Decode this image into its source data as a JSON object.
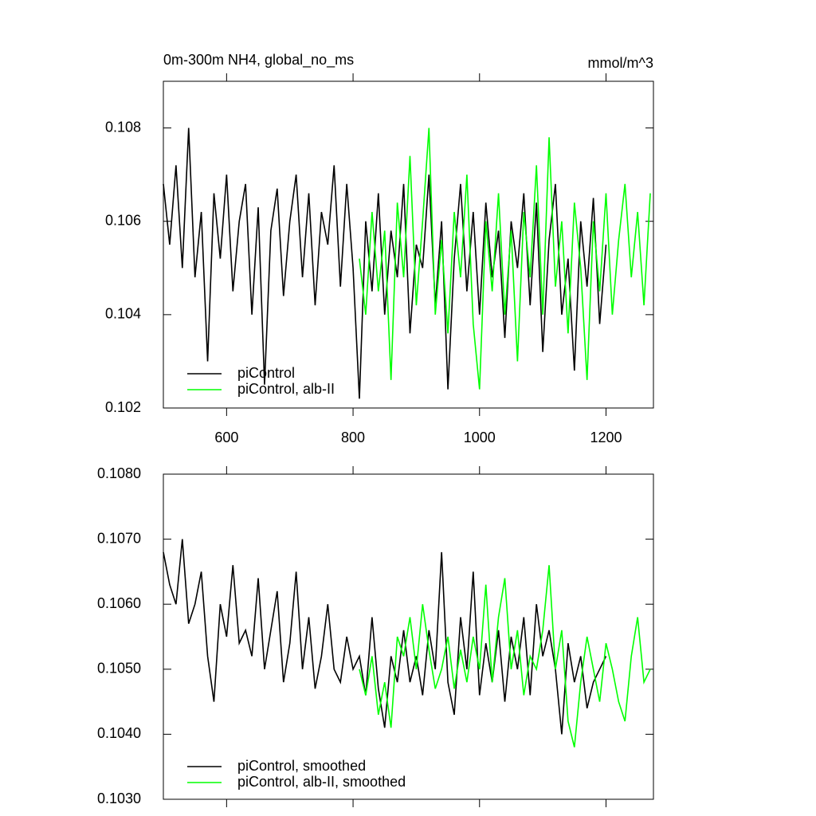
{
  "chart_data": [
    {
      "type": "line",
      "title": "0m-300m NH4, global_no_ms",
      "subtitle": "mmol/m^3",
      "xlim": [
        500,
        1275
      ],
      "xticks": [
        600,
        800,
        1000,
        1200
      ],
      "ylim": [
        0.102,
        0.109
      ],
      "yticks": [
        0.102,
        0.104,
        0.106,
        0.108
      ],
      "series": [
        {
          "name": "piControl",
          "color": "#000000",
          "x": [
            500,
            510,
            520,
            530,
            540,
            550,
            560,
            570,
            580,
            590,
            600,
            610,
            620,
            630,
            640,
            650,
            660,
            670,
            680,
            690,
            700,
            710,
            720,
            730,
            740,
            750,
            760,
            770,
            780,
            790,
            800,
            810,
            820,
            830,
            840,
            850,
            860,
            870,
            880,
            890,
            900,
            910,
            920,
            930,
            940,
            950,
            960,
            970,
            980,
            990,
            1000,
            1010,
            1020,
            1030,
            1040,
            1050,
            1060,
            1070,
            1080,
            1090,
            1100,
            1110,
            1120,
            1130,
            1140,
            1150,
            1160,
            1170,
            1180,
            1190,
            1200
          ],
          "values": [
            0.1068,
            0.1055,
            0.1072,
            0.105,
            0.108,
            0.1048,
            0.1062,
            0.103,
            0.1066,
            0.1052,
            0.107,
            0.1045,
            0.106,
            0.1068,
            0.104,
            0.1063,
            0.1025,
            0.1058,
            0.1067,
            0.1044,
            0.106,
            0.107,
            0.1048,
            0.1066,
            0.1042,
            0.1062,
            0.1055,
            0.1072,
            0.1046,
            0.1068,
            0.105,
            0.1022,
            0.106,
            0.1045,
            0.1066,
            0.104,
            0.1058,
            0.1048,
            0.1068,
            0.1036,
            0.1055,
            0.105,
            0.107,
            0.1042,
            0.106,
            0.1024,
            0.1052,
            0.1068,
            0.1045,
            0.1062,
            0.104,
            0.1064,
            0.1048,
            0.1058,
            0.1035,
            0.106,
            0.105,
            0.1066,
            0.1042,
            0.1064,
            0.1032,
            0.1056,
            0.1068,
            0.104,
            0.1052,
            0.1028,
            0.106,
            0.1046,
            0.1065,
            0.1038,
            0.1055
          ]
        },
        {
          "name": "piControl, alb-II",
          "color": "#00ff00",
          "x": [
            810,
            820,
            830,
            840,
            850,
            860,
            870,
            880,
            890,
            900,
            910,
            920,
            930,
            940,
            950,
            960,
            970,
            980,
            990,
            1000,
            1010,
            1020,
            1030,
            1040,
            1050,
            1060,
            1070,
            1080,
            1090,
            1100,
            1110,
            1120,
            1130,
            1140,
            1150,
            1160,
            1170,
            1180,
            1190,
            1200,
            1210,
            1220,
            1230,
            1240,
            1250,
            1260,
            1270
          ],
          "values": [
            0.1052,
            0.104,
            0.1062,
            0.1045,
            0.1058,
            0.1026,
            0.1064,
            0.1048,
            0.1074,
            0.1042,
            0.106,
            0.108,
            0.104,
            0.1056,
            0.1036,
            0.1062,
            0.1048,
            0.107,
            0.1038,
            0.1024,
            0.106,
            0.1045,
            0.1066,
            0.104,
            0.1058,
            0.103,
            0.1062,
            0.1048,
            0.1072,
            0.104,
            0.1078,
            0.1046,
            0.106,
            0.1036,
            0.1064,
            0.105,
            0.1026,
            0.106,
            0.1045,
            0.1066,
            0.104,
            0.1056,
            0.1068,
            0.1048,
            0.1062,
            0.1042,
            0.1066
          ]
        }
      ]
    },
    {
      "type": "line",
      "xlim": [
        500,
        1275
      ],
      "xticks": [
        600,
        800,
        1000,
        1200
      ],
      "ylim": [
        0.103,
        0.108
      ],
      "yticks": [
        {
          "value": 0.103,
          "label": "0.1030"
        },
        {
          "value": 0.104,
          "label": "0.1040"
        },
        {
          "value": 0.105,
          "label": "0.1050"
        },
        {
          "value": 0.106,
          "label": "0.1060"
        },
        {
          "value": 0.107,
          "label": "0.1070"
        },
        {
          "value": 0.108,
          "label": "0.1080"
        }
      ],
      "series": [
        {
          "name": "piControl, smoothed",
          "color": "#000000",
          "x": [
            500,
            510,
            520,
            530,
            540,
            550,
            560,
            570,
            580,
            590,
            600,
            610,
            620,
            630,
            640,
            650,
            660,
            670,
            680,
            690,
            700,
            710,
            720,
            730,
            740,
            750,
            760,
            770,
            780,
            790,
            800,
            810,
            820,
            830,
            840,
            850,
            860,
            870,
            880,
            890,
            900,
            910,
            920,
            930,
            940,
            950,
            960,
            970,
            980,
            990,
            1000,
            1010,
            1020,
            1030,
            1040,
            1050,
            1060,
            1070,
            1080,
            1090,
            1100,
            1110,
            1120,
            1130,
            1140,
            1150,
            1160,
            1170,
            1180,
            1190,
            1200
          ],
          "values": [
            0.1068,
            0.1063,
            0.106,
            0.107,
            0.1057,
            0.106,
            0.1065,
            0.1052,
            0.1045,
            0.106,
            0.1055,
            0.1066,
            0.1054,
            0.1056,
            0.1052,
            0.1064,
            0.105,
            0.1056,
            0.1062,
            0.1048,
            0.1054,
            0.1065,
            0.105,
            0.1058,
            0.1047,
            0.1052,
            0.106,
            0.105,
            0.1048,
            0.1055,
            0.105,
            0.1052,
            0.1046,
            0.1058,
            0.1047,
            0.1041,
            0.1052,
            0.1048,
            0.1056,
            0.1048,
            0.1052,
            0.1046,
            0.1056,
            0.105,
            0.1068,
            0.1048,
            0.1043,
            0.1058,
            0.105,
            0.1065,
            0.1046,
            0.1054,
            0.1048,
            0.1056,
            0.1045,
            0.1055,
            0.105,
            0.1058,
            0.1046,
            0.106,
            0.1052,
            0.1056,
            0.105,
            0.104,
            0.1054,
            0.1048,
            0.1052,
            0.1044,
            0.1048,
            0.105,
            0.1052
          ]
        },
        {
          "name": "piControl, alb-II, smoothed",
          "color": "#00ff00",
          "x": [
            810,
            820,
            830,
            840,
            850,
            860,
            870,
            880,
            890,
            900,
            910,
            920,
            930,
            940,
            950,
            960,
            970,
            980,
            990,
            1000,
            1010,
            1020,
            1030,
            1040,
            1050,
            1060,
            1070,
            1080,
            1090,
            1100,
            1110,
            1120,
            1130,
            1140,
            1150,
            1160,
            1170,
            1180,
            1190,
            1200,
            1210,
            1220,
            1230,
            1240,
            1250,
            1260,
            1270
          ],
          "values": [
            0.105,
            0.1046,
            0.1052,
            0.1043,
            0.1048,
            0.1041,
            0.1055,
            0.1052,
            0.1058,
            0.105,
            0.106,
            0.1053,
            0.1047,
            0.105,
            0.1055,
            0.1047,
            0.1053,
            0.1048,
            0.1055,
            0.105,
            0.1063,
            0.1048,
            0.1058,
            0.1064,
            0.105,
            0.1056,
            0.1046,
            0.1052,
            0.105,
            0.1056,
            0.1066,
            0.105,
            0.1056,
            0.1042,
            0.1038,
            0.1048,
            0.1055,
            0.105,
            0.1045,
            0.1054,
            0.105,
            0.1045,
            0.1042,
            0.1052,
            0.1058,
            0.1048,
            0.105
          ]
        }
      ]
    }
  ]
}
